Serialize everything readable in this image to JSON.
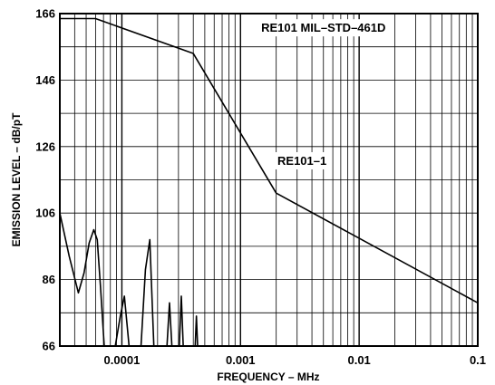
{
  "chart_data": {
    "type": "line",
    "title": "",
    "xlabel": "FREQUENCY – MHz",
    "ylabel": "EMISSION LEVEL – dB/pT",
    "x_scale": "log",
    "xlim": [
      3e-05,
      0.1
    ],
    "ylim": [
      66,
      166
    ],
    "grid": true,
    "x_tick_values": [
      0.0001,
      0.001,
      0.01,
      0.1
    ],
    "x_tick_labels": [
      "0.0001",
      "0.001",
      "0.01",
      "0.1"
    ],
    "y_tick_values": [
      66,
      86,
      106,
      126,
      146,
      166
    ],
    "y_tick_labels": [
      "66",
      "86",
      "106",
      "126",
      "146",
      "166"
    ],
    "annotations": [
      {
        "text": "RE101   MIL–STD–461D",
        "x": 0.005,
        "y": 160.5
      },
      {
        "text": "RE101–1",
        "x": 0.0033,
        "y": 120.5
      }
    ],
    "series": [
      {
        "name": "RE101–1",
        "color": "#000000",
        "x": [
          3e-05,
          6e-05,
          0.0004,
          0.002,
          0.1
        ],
        "y": [
          164.5,
          164.5,
          154,
          112,
          79
        ]
      },
      {
        "name": "",
        "color": "#000000",
        "x": [
          3e-05,
          3.6e-05,
          4.3e-05,
          4.8e-05,
          5.3e-05,
          5.8e-05,
          6.2e-05,
          6.6e-05,
          7.1e-05,
          7.7e-05,
          8.8e-05,
          9.7e-05,
          0.000105,
          0.000115,
          0.000145,
          0.000158,
          0.000172,
          0.000186,
          0.00024,
          0.000252,
          0.000264,
          0.000305,
          0.000317,
          0.000329,
          0.000415,
          0.000425,
          0.000435
        ],
        "y": [
          106,
          93,
          82,
          88,
          97,
          101,
          98,
          84,
          66,
          66,
          66,
          75,
          81,
          66,
          66,
          89,
          98,
          66,
          66,
          79,
          66,
          66,
          81,
          66,
          66,
          75,
          66
        ]
      }
    ]
  }
}
